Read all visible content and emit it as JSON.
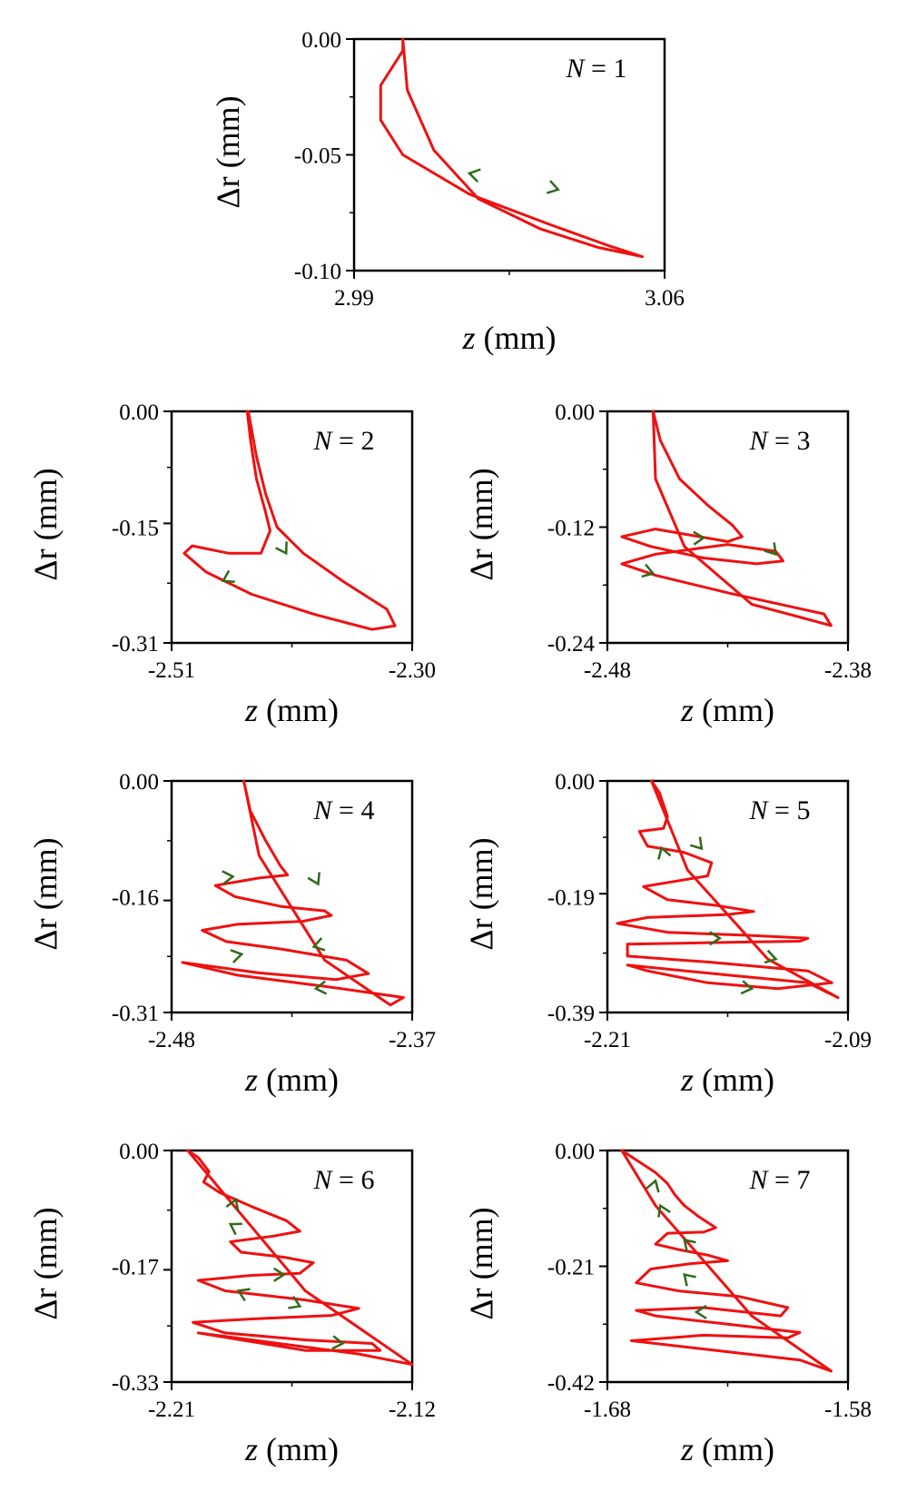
{
  "chart_data": [
    {
      "type": "line",
      "label": "N = 1",
      "n_label": "N",
      "n_value": "1",
      "xlabel": "z",
      "xunit": "(mm)",
      "ylabel": "Δr",
      "yunit": "(mm)",
      "xlim": [
        2.99,
        3.06
      ],
      "ylim": [
        -0.1,
        0.0
      ],
      "xticks": [
        "2.99",
        "3.06"
      ],
      "yticks": [
        "0.00",
        "-0.05",
        "-0.10"
      ],
      "ytick_values": [
        0.0,
        -0.05,
        -0.1
      ],
      "curve_color": "#ee1111",
      "arrow_color": "#2e6b1a",
      "series": [
        {
          "name": "trajectory",
          "x": [
            3.001,
            3.001,
            2.996,
            2.996,
            3.001,
            3.016,
            3.034,
            3.047,
            3.055,
            3.045,
            3.032,
            3.018,
            3.008,
            3.002,
            3.001
          ],
          "y": [
            0.0,
            -0.005,
            -0.02,
            -0.035,
            -0.05,
            -0.067,
            -0.08,
            -0.089,
            -0.094,
            -0.09,
            -0.082,
            -0.069,
            -0.048,
            -0.022,
            0.0
          ]
        }
      ],
      "arrows": [
        {
          "x": 3.016,
          "y": -0.058,
          "dir": [
            -0.9,
            -0.2
          ]
        },
        {
          "x": 3.036,
          "y": -0.065,
          "dir": [
            0.9,
            0.25
          ]
        }
      ]
    },
    {
      "type": "line",
      "label": "N = 2",
      "n_label": "N",
      "n_value": "2",
      "xlabel": "z",
      "xunit": "(mm)",
      "ylabel": "Δr",
      "yunit": "(mm)",
      "xlim": [
        -2.51,
        -2.3
      ],
      "ylim": [
        -0.31,
        0.0
      ],
      "xticks": [
        "-2.51",
        "-2.30"
      ],
      "yticks": [
        "0.00",
        "-0.15",
        "-0.31"
      ],
      "ytick_values": [
        0.0,
        -0.15,
        -0.31
      ],
      "curve_color": "#ee1111",
      "arrow_color": "#2e6b1a",
      "series": [
        {
          "name": "trajectory",
          "x": [
            -2.444,
            -2.441,
            -2.436,
            -2.428,
            -2.424,
            -2.432,
            -2.46,
            -2.492,
            -2.499,
            -2.48,
            -2.44,
            -2.385,
            -2.335,
            -2.315,
            -2.322,
            -2.36,
            -2.395,
            -2.418,
            -2.428,
            -2.436,
            -2.443
          ],
          "y": [
            0.0,
            -0.04,
            -0.09,
            -0.135,
            -0.16,
            -0.19,
            -0.19,
            -0.18,
            -0.19,
            -0.215,
            -0.245,
            -0.272,
            -0.292,
            -0.287,
            -0.265,
            -0.228,
            -0.19,
            -0.155,
            -0.11,
            -0.06,
            -0.0
          ]
        }
      ],
      "arrows": [
        {
          "x": -2.465,
          "y": -0.227,
          "dir": [
            -0.85,
            0.45
          ]
        },
        {
          "x": -2.41,
          "y": -0.19,
          "dir": [
            0.5,
            0.85
          ]
        }
      ]
    },
    {
      "type": "line",
      "label": "N = 3",
      "n_label": "N",
      "n_value": "3",
      "xlabel": "z",
      "xunit": "(mm)",
      "ylabel": "Δr",
      "yunit": "(mm)",
      "xlim": [
        -2.48,
        -2.38
      ],
      "ylim": [
        -0.24,
        0.0
      ],
      "xticks": [
        "-2.48",
        "-2.38"
      ],
      "yticks": [
        "0.00",
        "-0.12",
        "-0.24"
      ],
      "ytick_values": [
        0.0,
        -0.12,
        -0.24
      ],
      "curve_color": "#ee1111",
      "arrow_color": "#2e6b1a",
      "series": [
        {
          "name": "trajectory",
          "x": [
            -2.461,
            -2.458,
            -2.45,
            -2.438,
            -2.428,
            -2.424,
            -2.43,
            -2.46,
            -2.474,
            -2.462,
            -2.44,
            -2.418,
            -2.407,
            -2.41,
            -2.43,
            -2.46,
            -2.474,
            -2.46,
            -2.43,
            -2.39,
            -2.387,
            -2.42,
            -2.448,
            -2.46,
            -2.461
          ],
          "y": [
            0.0,
            -0.03,
            -0.07,
            -0.098,
            -0.118,
            -0.13,
            -0.135,
            -0.122,
            -0.13,
            -0.14,
            -0.152,
            -0.158,
            -0.155,
            -0.145,
            -0.138,
            -0.148,
            -0.158,
            -0.17,
            -0.188,
            -0.21,
            -0.222,
            -0.2,
            -0.14,
            -0.07,
            -0.0
          ]
        }
      ],
      "arrows": [
        {
          "x": -2.44,
          "y": -0.131,
          "dir": [
            1.0,
            -0.05
          ]
        },
        {
          "x": -2.41,
          "y": -0.148,
          "dir": [
            0.65,
            0.75
          ]
        },
        {
          "x": -2.461,
          "y": -0.168,
          "dir": [
            0.95,
            0.3
          ]
        }
      ]
    },
    {
      "type": "line",
      "label": "N = 4",
      "n_label": "N",
      "n_value": "4",
      "xlabel": "z",
      "xunit": "(mm)",
      "ylabel": "Δr",
      "yunit": "(mm)",
      "xlim": [
        -2.48,
        -2.37
      ],
      "ylim": [
        -0.31,
        0.0
      ],
      "xticks": [
        "-2.48",
        "-2.37"
      ],
      "yticks": [
        "0.00",
        "-0.16",
        "-0.31"
      ],
      "ytick_values": [
        0.0,
        -0.16,
        -0.31
      ],
      "curve_color": "#ee1111",
      "arrow_color": "#2e6b1a",
      "series": [
        {
          "name": "trajectory",
          "x": [
            -2.447,
            -2.444,
            -2.437,
            -2.43,
            -2.427,
            -2.44,
            -2.46,
            -2.451,
            -2.43,
            -2.41,
            -2.407,
            -2.42,
            -2.45,
            -2.466,
            -2.455,
            -2.43,
            -2.4,
            -2.39,
            -2.405,
            -2.44,
            -2.475,
            -2.45,
            -2.41,
            -2.374,
            -2.38,
            -2.41,
            -2.44,
            -2.447
          ],
          "y": [
            0.0,
            -0.04,
            -0.08,
            -0.115,
            -0.126,
            -0.13,
            -0.14,
            -0.155,
            -0.168,
            -0.174,
            -0.18,
            -0.188,
            -0.192,
            -0.2,
            -0.215,
            -0.225,
            -0.24,
            -0.258,
            -0.266,
            -0.257,
            -0.243,
            -0.26,
            -0.275,
            -0.29,
            -0.3,
            -0.24,
            -0.1,
            -0.0
          ]
        }
      ],
      "arrows": [
        {
          "x": -2.452,
          "y": -0.128,
          "dir": [
            1.0,
            -0.1
          ]
        },
        {
          "x": -2.413,
          "y": -0.138,
          "dir": [
            0.45,
            0.9
          ]
        },
        {
          "x": -2.415,
          "y": -0.222,
          "dir": [
            -0.9,
            0.25
          ]
        },
        {
          "x": -2.448,
          "y": -0.232,
          "dir": [
            0.95,
            -0.2
          ]
        },
        {
          "x": -2.414,
          "y": -0.278,
          "dir": [
            -1.0,
            0.1
          ]
        }
      ]
    },
    {
      "type": "line",
      "label": "N = 5",
      "n_label": "N",
      "n_value": "5",
      "xlabel": "z",
      "xunit": "(mm)",
      "ylabel": "Δr",
      "yunit": "(mm)",
      "xlim": [
        -2.21,
        -2.09
      ],
      "ylim": [
        -0.39,
        0.0
      ],
      "xticks": [
        "-2.21",
        "-2.09"
      ],
      "yticks": [
        "0.00",
        "-0.19",
        "-0.39"
      ],
      "ytick_values": [
        0.0,
        -0.19,
        -0.39
      ],
      "curve_color": "#ee1111",
      "arrow_color": "#2e6b1a",
      "series": [
        {
          "name": "trajectory",
          "x": [
            -2.188,
            -2.184,
            -2.18,
            -2.182,
            -2.194,
            -2.19,
            -2.172,
            -2.158,
            -2.16,
            -2.178,
            -2.192,
            -2.18,
            -2.155,
            -2.137,
            -2.15,
            -2.19,
            -2.205,
            -2.18,
            -2.14,
            -2.11,
            -2.114,
            -2.15,
            -2.2,
            -2.2,
            -2.16,
            -2.11,
            -2.098,
            -2.125,
            -2.16,
            -2.19,
            -2.2,
            -2.18,
            -2.15,
            -2.11,
            -2.095,
            -2.13,
            -2.17,
            -2.188
          ],
          "y": [
            0.0,
            -0.02,
            -0.06,
            -0.08,
            -0.085,
            -0.11,
            -0.12,
            -0.138,
            -0.16,
            -0.17,
            -0.178,
            -0.2,
            -0.21,
            -0.22,
            -0.225,
            -0.23,
            -0.24,
            -0.255,
            -0.26,
            -0.265,
            -0.27,
            -0.272,
            -0.275,
            -0.295,
            -0.305,
            -0.32,
            -0.34,
            -0.35,
            -0.34,
            -0.32,
            -0.31,
            -0.317,
            -0.327,
            -0.34,
            -0.365,
            -0.3,
            -0.15,
            -0.0
          ]
        }
      ],
      "arrows": [
        {
          "x": -2.183,
          "y": -0.113,
          "dir": [
            -0.3,
            -0.95
          ]
        },
        {
          "x": -2.163,
          "y": -0.114,
          "dir": [
            0.65,
            0.75
          ]
        },
        {
          "x": -2.154,
          "y": -0.265,
          "dir": [
            1.0,
            0.0
          ]
        },
        {
          "x": -2.126,
          "y": -0.3,
          "dir": [
            0.95,
            0.25
          ]
        },
        {
          "x": -2.138,
          "y": -0.35,
          "dir": [
            1.0,
            0.15
          ]
        }
      ]
    },
    {
      "type": "line",
      "label": "N = 6",
      "n_label": "N",
      "n_value": "6",
      "xlabel": "z",
      "xunit": "(mm)",
      "ylabel": "Δr",
      "yunit": "(mm)",
      "xlim": [
        -2.21,
        -2.12
      ],
      "ylim": [
        -0.33,
        0.0
      ],
      "xticks": [
        "-2.21",
        "-2.12"
      ],
      "yticks": [
        "0.00",
        "-0.17",
        "-0.33"
      ],
      "ytick_values": [
        0.0,
        -0.17,
        -0.33
      ],
      "curve_color": "#ee1111",
      "arrow_color": "#2e6b1a",
      "series": [
        {
          "name": "trajectory",
          "x": [
            -2.204,
            -2.2,
            -2.196,
            -2.198,
            -2.192,
            -2.18,
            -2.167,
            -2.162,
            -2.172,
            -2.188,
            -2.184,
            -2.168,
            -2.157,
            -2.162,
            -2.18,
            -2.2,
            -2.19,
            -2.16,
            -2.14,
            -2.15,
            -2.18,
            -2.202,
            -2.19,
            -2.16,
            -2.135,
            -2.132,
            -2.16,
            -2.2,
            -2.18,
            -2.14,
            -2.12,
            -2.16,
            -2.204
          ],
          "y": [
            0.0,
            -0.01,
            -0.03,
            -0.045,
            -0.06,
            -0.08,
            -0.1,
            -0.115,
            -0.122,
            -0.13,
            -0.145,
            -0.152,
            -0.16,
            -0.175,
            -0.178,
            -0.185,
            -0.2,
            -0.213,
            -0.225,
            -0.235,
            -0.24,
            -0.245,
            -0.26,
            -0.27,
            -0.275,
            -0.285,
            -0.285,
            -0.26,
            -0.27,
            -0.29,
            -0.305,
            -0.2,
            -0.0
          ]
        }
      ],
      "arrows": [
        {
          "x": -2.186,
          "y": -0.07,
          "dir": [
            0.35,
            -0.95
          ]
        },
        {
          "x": -2.188,
          "y": -0.105,
          "dir": [
            -0.85,
            -0.5
          ]
        },
        {
          "x": -2.168,
          "y": -0.177,
          "dir": [
            1.0,
            0.0
          ]
        },
        {
          "x": -2.162,
          "y": -0.222,
          "dir": [
            0.9,
            0.4
          ]
        },
        {
          "x": -2.185,
          "y": -0.2,
          "dir": [
            -0.9,
            -0.4
          ]
        },
        {
          "x": -2.146,
          "y": -0.275,
          "dir": [
            1.0,
            0.1
          ]
        }
      ]
    },
    {
      "type": "line",
      "label": "N = 7",
      "n_label": "N",
      "n_value": "7",
      "xlabel": "z",
      "xunit": "(mm)",
      "ylabel": "Δr",
      "yunit": "(mm)",
      "xlim": [
        -1.68,
        -1.58
      ],
      "ylim": [
        -0.42,
        0.0
      ],
      "xticks": [
        "-1.68",
        "-1.58"
      ],
      "yticks": [
        "0.00",
        "-0.21",
        "-0.42"
      ],
      "ytick_values": [
        0.0,
        -0.21,
        -0.42
      ],
      "curve_color": "#ee1111",
      "arrow_color": "#2e6b1a",
      "series": [
        {
          "name": "trajectory",
          "x": [
            -1.674,
            -1.667,
            -1.66,
            -1.655,
            -1.652,
            -1.648,
            -1.642,
            -1.635,
            -1.64,
            -1.655,
            -1.66,
            -1.65,
            -1.638,
            -1.63,
            -1.645,
            -1.662,
            -1.668,
            -1.65,
            -1.625,
            -1.605,
            -1.608,
            -1.64,
            -1.668,
            -1.66,
            -1.63,
            -1.6,
            -1.605,
            -1.64,
            -1.67,
            -1.64,
            -1.6,
            -1.587,
            -1.62,
            -1.66,
            -1.674
          ],
          "y": [
            0.0,
            -0.02,
            -0.04,
            -0.06,
            -0.08,
            -0.1,
            -0.12,
            -0.14,
            -0.148,
            -0.15,
            -0.17,
            -0.18,
            -0.19,
            -0.2,
            -0.205,
            -0.215,
            -0.24,
            -0.255,
            -0.265,
            -0.285,
            -0.3,
            -0.285,
            -0.29,
            -0.3,
            -0.315,
            -0.33,
            -0.34,
            -0.335,
            -0.345,
            -0.36,
            -0.38,
            -0.4,
            -0.3,
            -0.1,
            -0.0
          ]
        }
      ],
      "arrows": [
        {
          "x": -1.66,
          "y": -0.055,
          "dir": [
            0.3,
            -0.95
          ]
        },
        {
          "x": -1.658,
          "y": -0.1,
          "dir": [
            -0.4,
            -0.9
          ]
        },
        {
          "x": -1.648,
          "y": -0.162,
          "dir": [
            -0.7,
            -0.7
          ]
        },
        {
          "x": -1.648,
          "y": -0.225,
          "dir": [
            -0.7,
            -0.7
          ]
        },
        {
          "x": -1.643,
          "y": -0.293,
          "dir": [
            -1.0,
            0.0
          ]
        }
      ]
    }
  ]
}
